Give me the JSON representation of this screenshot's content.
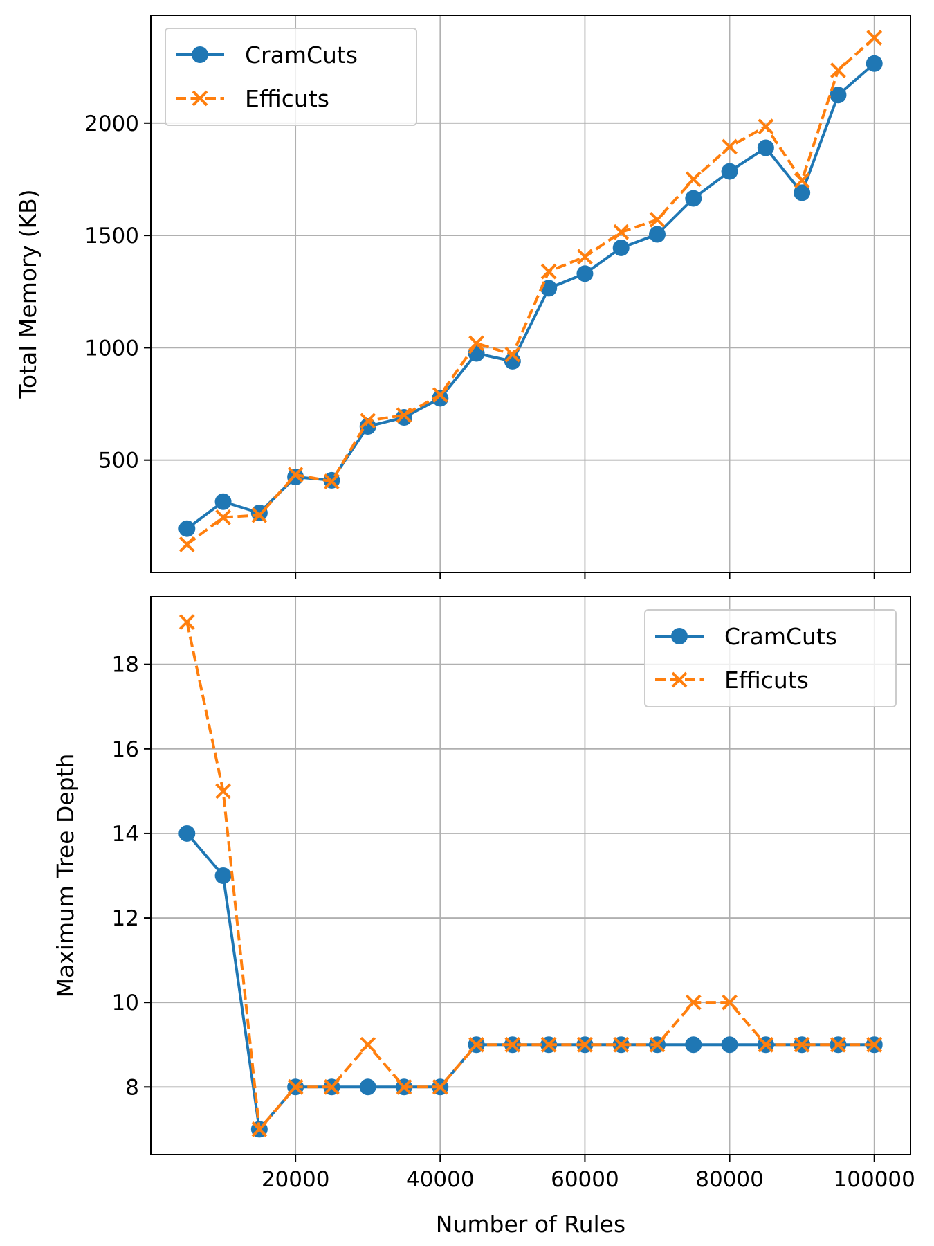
{
  "chart_data": [
    {
      "type": "line",
      "title": "",
      "xlabel": "",
      "ylabel": "Total Memory (KB)",
      "x": [
        5000,
        10000,
        15000,
        20000,
        25000,
        30000,
        35000,
        40000,
        45000,
        50000,
        55000,
        60000,
        65000,
        70000,
        75000,
        80000,
        85000,
        90000,
        95000,
        100000
      ],
      "xlim": [
        0,
        105000
      ],
      "ylim": [
        0,
        2480
      ],
      "xticks": [
        20000,
        40000,
        60000,
        80000,
        100000
      ],
      "xtick_labels_visible": false,
      "yticks": [
        500,
        1000,
        1500,
        2000
      ],
      "grid": true,
      "legend_position": "upper-left",
      "series": [
        {
          "name": "CramCuts",
          "color": "#1f77b4",
          "line_style": "solid",
          "marker": "circle",
          "values": [
            195,
            315,
            265,
            425,
            410,
            650,
            690,
            775,
            975,
            940,
            1265,
            1330,
            1445,
            1505,
            1665,
            1785,
            1890,
            1690,
            2125,
            2265
          ]
        },
        {
          "name": "Efficuts",
          "color": "#ff7f0e",
          "line_style": "dashed",
          "marker": "x",
          "values": [
            125,
            245,
            255,
            435,
            405,
            675,
            700,
            790,
            1020,
            970,
            1340,
            1405,
            1515,
            1570,
            1750,
            1895,
            1985,
            1745,
            2235,
            2380
          ]
        }
      ]
    },
    {
      "type": "line",
      "title": "",
      "xlabel": "Number of Rules",
      "ylabel": "Maximum Tree Depth",
      "x": [
        5000,
        10000,
        15000,
        20000,
        25000,
        30000,
        35000,
        40000,
        45000,
        50000,
        55000,
        60000,
        65000,
        70000,
        75000,
        80000,
        85000,
        90000,
        95000,
        100000
      ],
      "xlim": [
        0,
        105000
      ],
      "ylim": [
        6.4,
        19.6
      ],
      "xticks": [
        20000,
        40000,
        60000,
        80000,
        100000
      ],
      "xtick_labels_visible": true,
      "yticks": [
        8,
        10,
        12,
        14,
        16,
        18
      ],
      "grid": true,
      "legend_position": "upper-right",
      "series": [
        {
          "name": "CramCuts",
          "color": "#1f77b4",
          "line_style": "solid",
          "marker": "circle",
          "values": [
            14,
            13,
            7,
            8,
            8,
            8,
            8,
            8,
            9,
            9,
            9,
            9,
            9,
            9,
            9,
            9,
            9,
            9,
            9,
            9
          ]
        },
        {
          "name": "Efficuts",
          "color": "#ff7f0e",
          "line_style": "dashed",
          "marker": "x",
          "values": [
            19,
            15,
            7,
            8,
            8,
            9,
            8,
            8,
            9,
            9,
            9,
            9,
            9,
            9,
            10,
            10,
            9,
            9,
            9,
            9
          ]
        }
      ]
    }
  ]
}
